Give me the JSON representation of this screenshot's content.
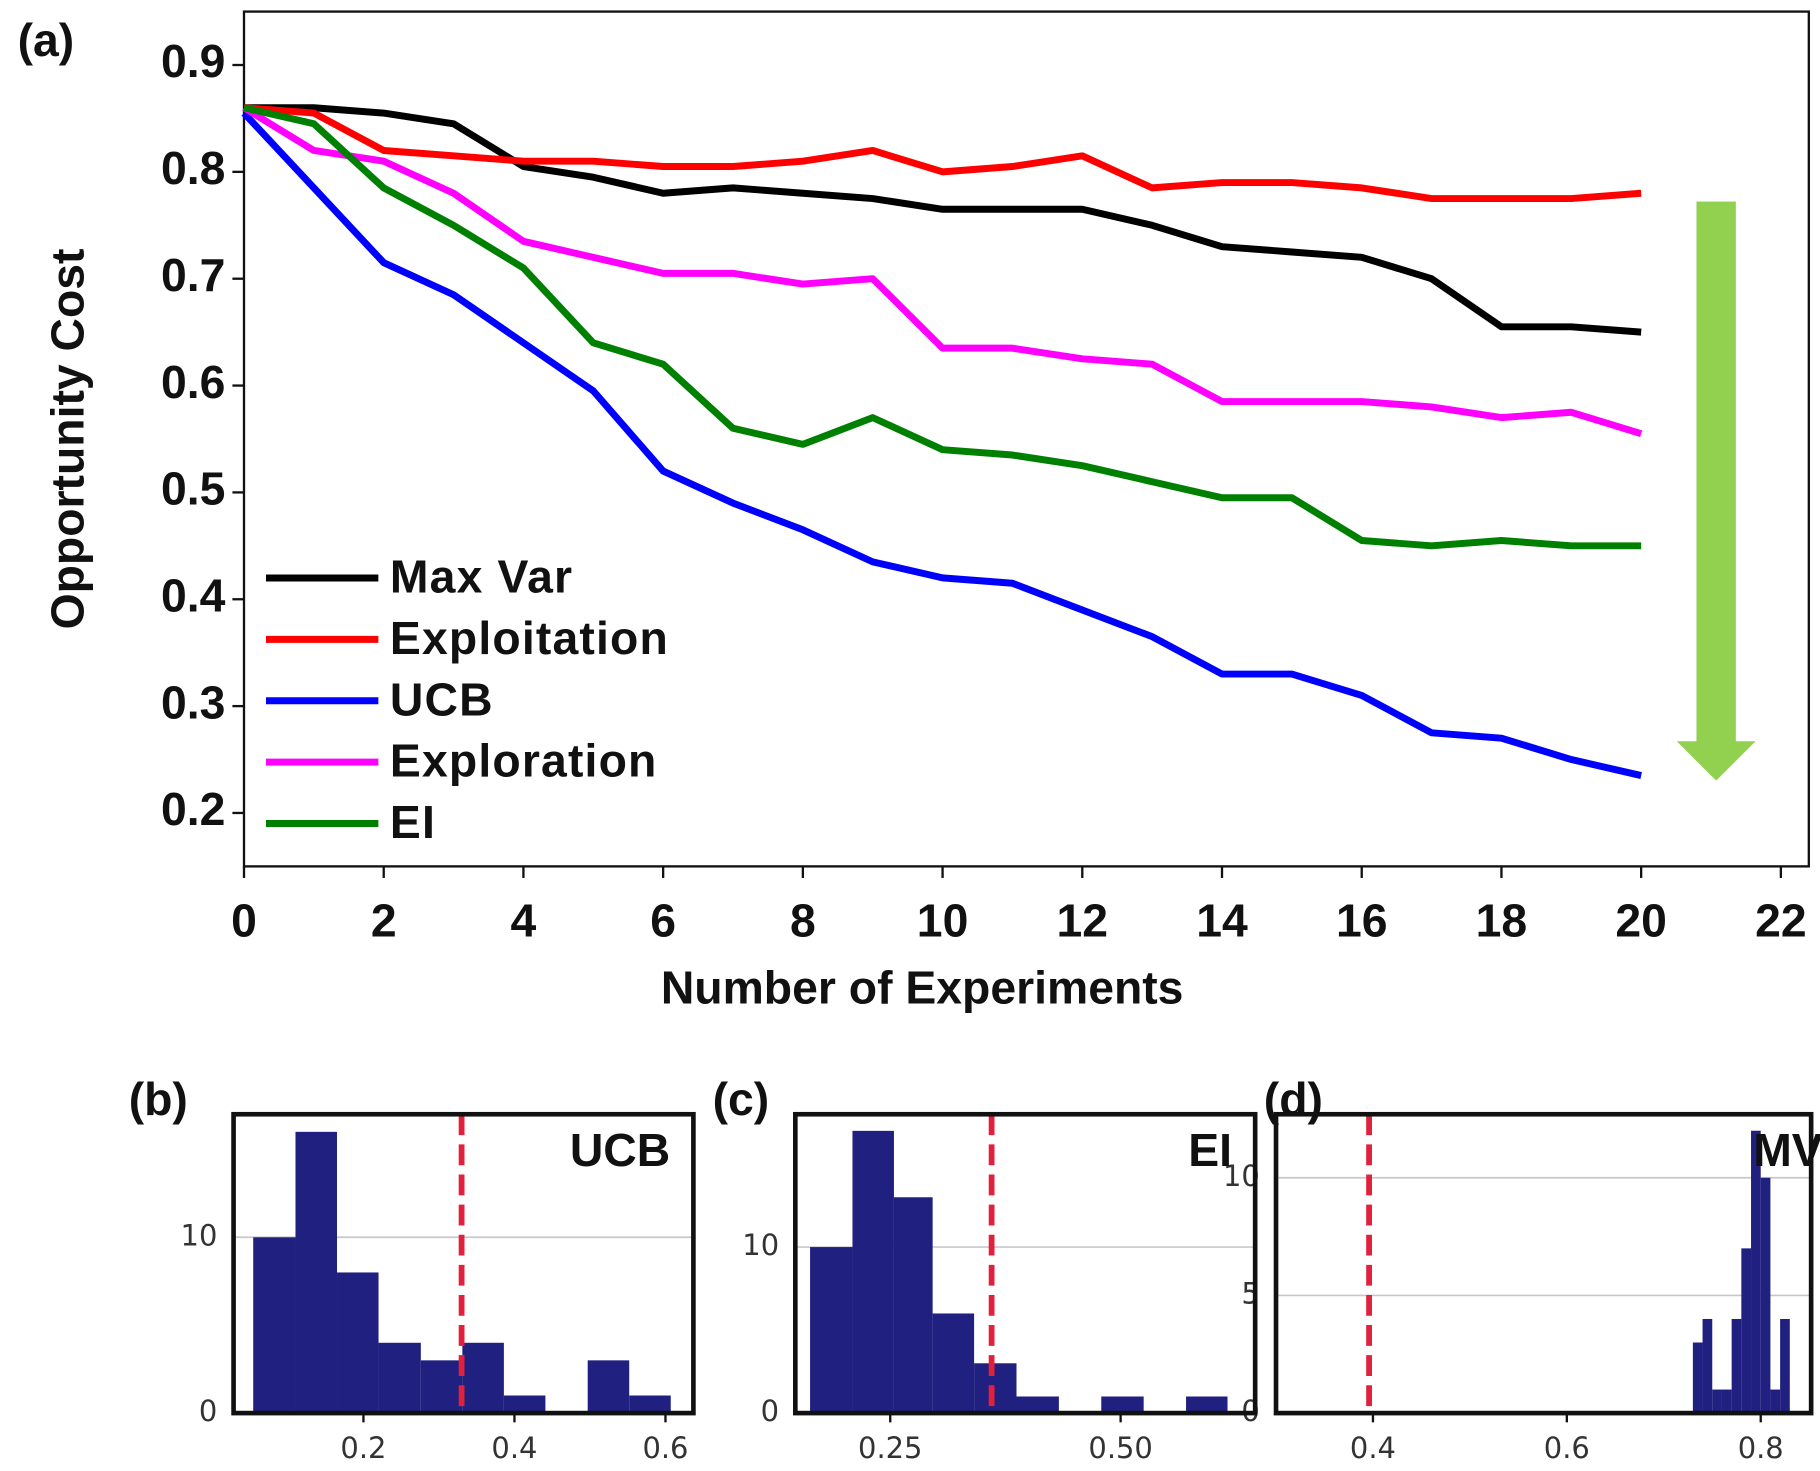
{
  "chart_data": [
    {
      "type": "line",
      "panel_label": "(a)",
      "x_label": "Number of Experiments",
      "y_label": "Opportunity Cost",
      "x": [
        0,
        1,
        2,
        3,
        4,
        5,
        6,
        7,
        8,
        9,
        10,
        11,
        12,
        13,
        14,
        15,
        16,
        17,
        18,
        19,
        20
      ],
      "series": [
        {
          "name": "Max Var",
          "color": "#000000",
          "values": [
            0.86,
            0.86,
            0.855,
            0.845,
            0.805,
            0.795,
            0.78,
            0.785,
            0.78,
            0.775,
            0.765,
            0.765,
            0.765,
            0.75,
            0.73,
            0.725,
            0.72,
            0.7,
            0.655,
            0.655,
            0.65
          ]
        },
        {
          "name": "Exploitation",
          "color": "#ff0000",
          "values": [
            0.86,
            0.855,
            0.82,
            0.815,
            0.81,
            0.81,
            0.805,
            0.805,
            0.81,
            0.82,
            0.8,
            0.805,
            0.815,
            0.785,
            0.79,
            0.79,
            0.785,
            0.775,
            0.775,
            0.775,
            0.78
          ]
        },
        {
          "name": "UCB",
          "color": "#0000ff",
          "values": [
            0.855,
            0.785,
            0.715,
            0.685,
            0.64,
            0.595,
            0.52,
            0.49,
            0.465,
            0.435,
            0.42,
            0.415,
            0.39,
            0.365,
            0.33,
            0.33,
            0.31,
            0.275,
            0.27,
            0.25,
            0.235
          ]
        },
        {
          "name": "Exploration",
          "color": "#ff00ff",
          "values": [
            0.86,
            0.82,
            0.81,
            0.78,
            0.735,
            0.72,
            0.705,
            0.705,
            0.695,
            0.7,
            0.635,
            0.635,
            0.625,
            0.62,
            0.585,
            0.585,
            0.585,
            0.58,
            0.57,
            0.575,
            0.555
          ]
        },
        {
          "name": "EI",
          "color": "#008000",
          "values": [
            0.86,
            0.845,
            0.785,
            0.75,
            0.71,
            0.64,
            0.62,
            0.56,
            0.545,
            0.57,
            0.54,
            0.535,
            0.525,
            0.51,
            0.495,
            0.495,
            0.455,
            0.45,
            0.455,
            0.45,
            0.45
          ]
        }
      ],
      "xlim": [
        0,
        22.4
      ],
      "ylim": [
        0.15,
        0.95
      ],
      "xticks": [
        0,
        2,
        4,
        6,
        8,
        10,
        12,
        14,
        16,
        18,
        20,
        22
      ],
      "yticks": [
        0.2,
        0.3,
        0.4,
        0.5,
        0.6,
        0.7,
        0.8,
        0.9
      ],
      "legend": "lower left",
      "grid": false
    },
    {
      "type": "histogram",
      "panel_label": "(b)",
      "annotation": "UCB",
      "color": "#202080",
      "bins": [
        0.054,
        0.11,
        0.165,
        0.22,
        0.276,
        0.331,
        0.386,
        0.441,
        0.497,
        0.552,
        0.607
      ],
      "counts": [
        10,
        16,
        8,
        4,
        3,
        4,
        1,
        0,
        3,
        1
      ],
      "threshold": 0.33,
      "threshold_color": "#e0203c",
      "xlim": [
        0.028,
        0.637
      ],
      "ylim": [
        0,
        17
      ],
      "xticks": [
        0.2,
        0.4,
        0.6
      ],
      "yticks": [
        0,
        10
      ],
      "grid": true
    },
    {
      "type": "histogram",
      "panel_label": "(c)",
      "annotation": "EI",
      "color": "#202080",
      "bins": [
        0.163,
        0.209,
        0.254,
        0.296,
        0.341,
        0.387,
        0.433,
        0.479,
        0.525,
        0.571,
        0.616
      ],
      "counts": [
        10,
        17,
        13,
        6,
        3,
        1,
        0,
        1,
        0,
        1
      ],
      "threshold": 0.36,
      "threshold_color": "#e0203c",
      "xlim": [
        0.147,
        0.646
      ],
      "ylim": [
        0,
        18
      ],
      "xticks": [
        0.25,
        {
          "value": 0.5,
          "label": "0.50"
        }
      ],
      "yticks": [
        0,
        10
      ],
      "grid": true
    },
    {
      "type": "histogram",
      "panel_label": "(d)",
      "annotation": "MV",
      "color": "#202080",
      "bins": [
        0.73,
        0.74,
        0.75,
        0.76,
        0.77,
        0.78,
        0.79,
        0.8,
        0.81,
        0.82,
        0.83
      ],
      "counts": [
        3,
        4,
        1,
        1,
        4,
        7,
        12,
        10,
        1,
        4
      ],
      "threshold": 0.396,
      "threshold_color": "#e0203c",
      "xlim": [
        0.3,
        0.852
      ],
      "ylim": [
        0,
        12.7
      ],
      "xticks": [
        0.4,
        0.6,
        0.8
      ],
      "yticks": [
        0,
        5,
        10
      ],
      "grid": true
    }
  ]
}
